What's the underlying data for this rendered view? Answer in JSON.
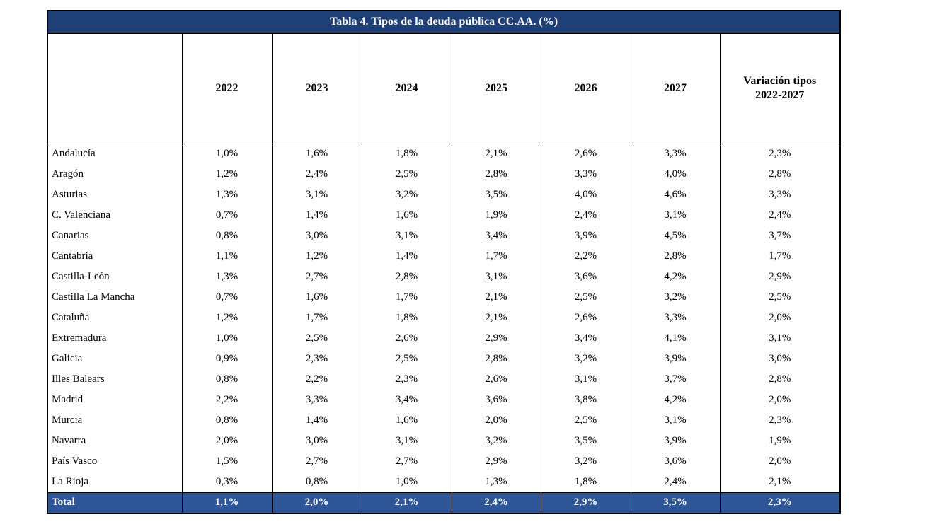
{
  "table": {
    "title": "Tabla 4. Tipos de la deuda pública CC.AA. (%)",
    "year_columns": [
      "2022",
      "2023",
      "2024",
      "2025",
      "2026",
      "2027"
    ],
    "variation_column": {
      "line1": "Variación tipos",
      "line2": "2022-2027"
    },
    "rows": [
      {
        "name": "Andalucía",
        "values": [
          "1,0%",
          "1,6%",
          "1,8%",
          "2,1%",
          "2,6%",
          "3,3%",
          "2,3%"
        ]
      },
      {
        "name": "Aragón",
        "values": [
          "1,2%",
          "2,4%",
          "2,5%",
          "2,8%",
          "3,3%",
          "4,0%",
          "2,8%"
        ]
      },
      {
        "name": "Asturias",
        "values": [
          "1,3%",
          "3,1%",
          "3,2%",
          "3,5%",
          "4,0%",
          "4,6%",
          "3,3%"
        ]
      },
      {
        "name": "C. Valenciana",
        "values": [
          "0,7%",
          "1,4%",
          "1,6%",
          "1,9%",
          "2,4%",
          "3,1%",
          "2,4%"
        ]
      },
      {
        "name": "Canarias",
        "values": [
          "0,8%",
          "3,0%",
          "3,1%",
          "3,4%",
          "3,9%",
          "4,5%",
          "3,7%"
        ]
      },
      {
        "name": "Cantabria",
        "values": [
          "1,1%",
          "1,2%",
          "1,4%",
          "1,7%",
          "2,2%",
          "2,8%",
          "1,7%"
        ]
      },
      {
        "name": "Castilla-León",
        "values": [
          "1,3%",
          "2,7%",
          "2,8%",
          "3,1%",
          "3,6%",
          "4,2%",
          "2,9%"
        ]
      },
      {
        "name": "Castilla La Mancha",
        "values": [
          "0,7%",
          "1,6%",
          "1,7%",
          "2,1%",
          "2,5%",
          "3,2%",
          "2,5%"
        ]
      },
      {
        "name": "Cataluña",
        "values": [
          "1,2%",
          "1,7%",
          "1,8%",
          "2,1%",
          "2,6%",
          "3,3%",
          "2,0%"
        ]
      },
      {
        "name": "Extremadura",
        "values": [
          "1,0%",
          "2,5%",
          "2,6%",
          "2,9%",
          "3,4%",
          "4,1%",
          "3,1%"
        ]
      },
      {
        "name": "Galicia",
        "values": [
          "0,9%",
          "2,3%",
          "2,5%",
          "2,8%",
          "3,2%",
          "3,9%",
          "3,0%"
        ]
      },
      {
        "name": "Illes Balears",
        "values": [
          "0,8%",
          "2,2%",
          "2,3%",
          "2,6%",
          "3,1%",
          "3,7%",
          "2,8%"
        ]
      },
      {
        "name": "Madrid",
        "values": [
          "2,2%",
          "3,3%",
          "3,4%",
          "3,6%",
          "3,8%",
          "4,2%",
          "2,0%"
        ]
      },
      {
        "name": "Murcia",
        "values": [
          "0,8%",
          "1,4%",
          "1,6%",
          "2,0%",
          "2,5%",
          "3,1%",
          "2,3%"
        ]
      },
      {
        "name": "Navarra",
        "values": [
          "2,0%",
          "3,0%",
          "3,1%",
          "3,2%",
          "3,5%",
          "3,9%",
          "1,9%"
        ]
      },
      {
        "name": "País Vasco",
        "values": [
          "1,5%",
          "2,7%",
          "2,7%",
          "2,9%",
          "3,2%",
          "3,6%",
          "2,0%"
        ]
      },
      {
        "name": "La Rioja",
        "values": [
          "0,3%",
          "0,8%",
          "1,0%",
          "1,3%",
          "1,8%",
          "2,4%",
          "2,1%"
        ]
      }
    ],
    "total_row": {
      "name": "Total",
      "values": [
        "1,1%",
        "2,0%",
        "2,1%",
        "2,4%",
        "2,9%",
        "3,5%",
        "2,3%"
      ]
    },
    "colors": {
      "title_bg": "#1F3F77",
      "total_bg": "#2E5596",
      "border": "#000000",
      "title_text": "#FFFFFF"
    }
  }
}
